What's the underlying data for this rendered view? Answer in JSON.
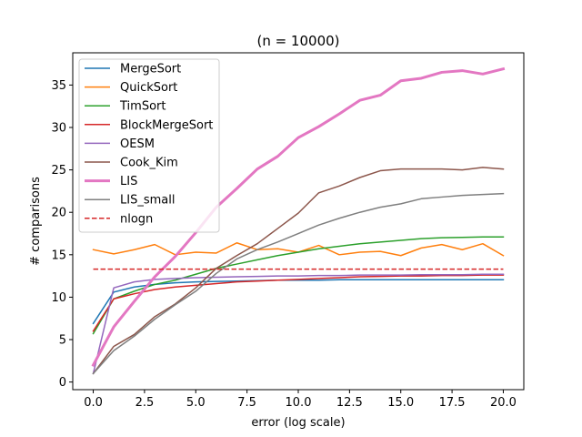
{
  "chart_data": {
    "type": "line",
    "title": "(n = 10000)",
    "xlabel": "error (log scale)",
    "ylabel": "# comparisons",
    "xlim": [
      -1.0,
      21.0
    ],
    "ylim": [
      -0.9,
      38.8
    ],
    "xticks": [
      0.0,
      2.5,
      5.0,
      7.5,
      10.0,
      12.5,
      15.0,
      17.5,
      20.0
    ],
    "xtick_labels": [
      "0.0",
      "2.5",
      "5.0",
      "7.5",
      "10.0",
      "12.5",
      "15.0",
      "17.5",
      "20.0"
    ],
    "yticks": [
      0,
      5,
      10,
      15,
      20,
      25,
      30,
      35
    ],
    "ytick_labels": [
      "0",
      "5",
      "10",
      "15",
      "20",
      "25",
      "30",
      "35"
    ],
    "grid": false,
    "legend_position": "upper-left",
    "x": [
      0,
      1,
      2,
      3,
      4,
      5,
      6,
      7,
      8,
      9,
      10,
      11,
      12,
      13,
      14,
      15,
      16,
      17,
      18,
      19,
      20
    ],
    "series": [
      {
        "name": "MergeSort",
        "color": "#1f77b4",
        "style": "solid",
        "width": 1.5,
        "values": [
          6.9,
          10.6,
          11.2,
          11.5,
          11.7,
          11.8,
          11.85,
          11.9,
          11.95,
          12.0,
          12.0,
          12.0,
          12.05,
          12.05,
          12.05,
          12.05,
          12.05,
          12.05,
          12.05,
          12.05,
          12.05
        ]
      },
      {
        "name": "QuickSort",
        "color": "#ff7f0e",
        "style": "solid",
        "width": 1.5,
        "values": [
          15.6,
          15.1,
          15.6,
          16.2,
          15.0,
          15.3,
          15.2,
          16.4,
          15.6,
          15.7,
          15.3,
          16.1,
          15.0,
          15.3,
          15.4,
          14.9,
          15.8,
          16.2,
          15.6,
          16.3,
          14.9
        ]
      },
      {
        "name": "TimSort",
        "color": "#2ca02c",
        "style": "solid",
        "width": 1.5,
        "values": [
          5.7,
          9.8,
          10.7,
          11.5,
          12.0,
          12.7,
          13.4,
          13.9,
          14.4,
          14.9,
          15.3,
          15.7,
          16.0,
          16.3,
          16.5,
          16.7,
          16.9,
          17.0,
          17.05,
          17.1,
          17.1
        ]
      },
      {
        "name": "BlockMergeSort",
        "color": "#d62728",
        "style": "solid",
        "width": 1.5,
        "values": [
          6.0,
          9.8,
          10.4,
          10.9,
          11.2,
          11.4,
          11.6,
          11.8,
          11.9,
          12.0,
          12.1,
          12.2,
          12.3,
          12.4,
          12.45,
          12.5,
          12.5,
          12.55,
          12.55,
          12.6,
          12.6
        ]
      },
      {
        "name": "OESM",
        "color": "#9467bd",
        "style": "solid",
        "width": 1.5,
        "values": [
          1.0,
          11.1,
          11.8,
          12.1,
          12.2,
          12.3,
          12.35,
          12.4,
          12.45,
          12.5,
          12.5,
          12.55,
          12.55,
          12.6,
          12.6,
          12.6,
          12.65,
          12.65,
          12.65,
          12.7,
          12.7
        ]
      },
      {
        "name": "Cook_Kim",
        "color": "#8c564b",
        "style": "solid",
        "width": 1.5,
        "values": [
          1.0,
          4.2,
          5.6,
          7.7,
          9.2,
          11.1,
          13.4,
          14.9,
          16.3,
          18.1,
          19.9,
          22.3,
          23.1,
          24.1,
          24.9,
          25.1,
          25.1,
          25.1,
          25.0,
          25.3,
          25.1
        ]
      },
      {
        "name": "LIS",
        "color": "#e377c2",
        "style": "solid",
        "width": 3.0,
        "values": [
          2.0,
          6.5,
          9.5,
          12.4,
          14.8,
          17.6,
          20.6,
          22.8,
          25.1,
          26.6,
          28.8,
          30.1,
          31.6,
          33.2,
          33.8,
          35.5,
          35.8,
          36.5,
          36.7,
          36.3,
          36.9
        ]
      },
      {
        "name": "LIS_small",
        "color": "#7f7f7f",
        "style": "solid",
        "width": 1.5,
        "values": [
          1.0,
          3.7,
          5.4,
          7.4,
          9.1,
          10.7,
          12.8,
          14.5,
          15.6,
          16.5,
          17.5,
          18.5,
          19.3,
          20.0,
          20.6,
          21.0,
          21.6,
          21.8,
          22.0,
          22.1,
          22.2
        ]
      },
      {
        "name": "nlogn",
        "color": "#d62728",
        "style": "dashed",
        "width": 1.5,
        "values": [
          13.3,
          13.3,
          13.3,
          13.3,
          13.3,
          13.3,
          13.3,
          13.3,
          13.3,
          13.3,
          13.3,
          13.3,
          13.3,
          13.3,
          13.3,
          13.3,
          13.3,
          13.3,
          13.3,
          13.3,
          13.3
        ]
      }
    ]
  }
}
